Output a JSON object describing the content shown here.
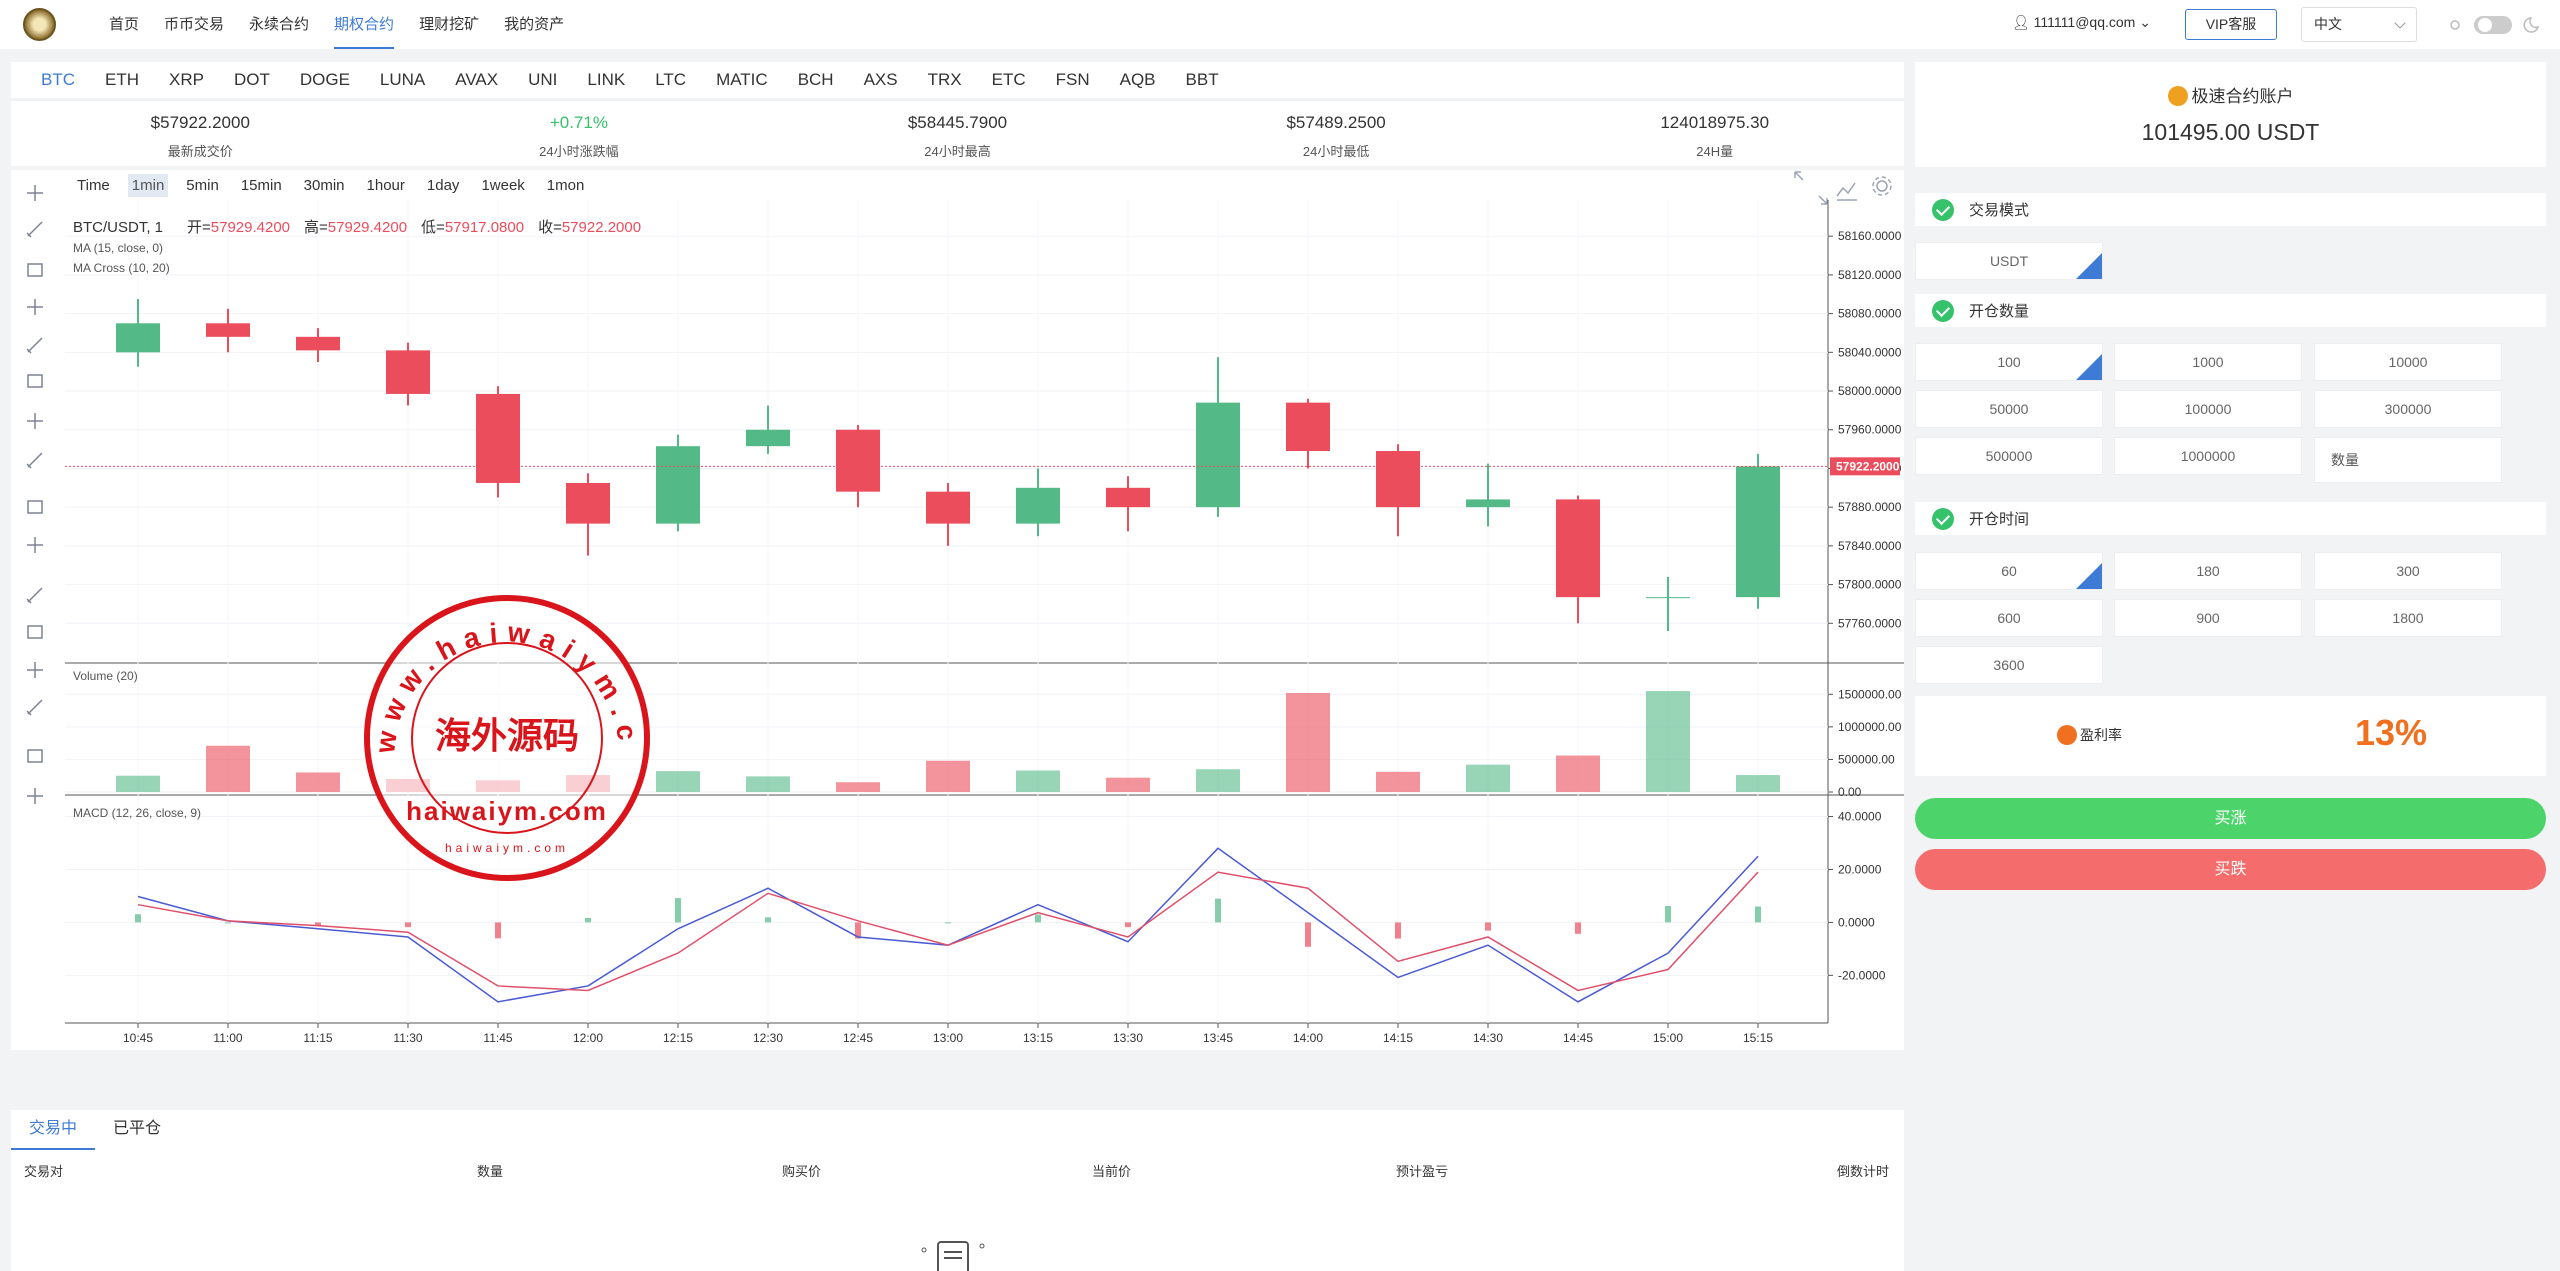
{
  "nav": {
    "items": [
      "首页",
      "币币交易",
      "永续合约",
      "期权合约",
      "理财挖矿",
      "我的资产"
    ],
    "user": "111111@qq.com",
    "service": "VIP客服",
    "language": "中文"
  },
  "coins": [
    "BTC",
    "ETH",
    "XRP",
    "DOT",
    "DOGE",
    "LUNA",
    "AVAX",
    "UNI",
    "LINK",
    "LTC",
    "MATIC",
    "BCH",
    "AXS",
    "TRX",
    "ETC",
    "FSN",
    "AQB",
    "BBT"
  ],
  "stats": [
    {
      "value": "$57922.2000",
      "label": "最新成交价"
    },
    {
      "value": "+0.71%",
      "label": "24小时涨跌幅"
    },
    {
      "value": "$58445.7900",
      "label": "24小时最高"
    },
    {
      "value": "$57489.2500",
      "label": "24小时最低"
    },
    {
      "value": "124018975.30",
      "label": "24H量"
    }
  ],
  "intervals": [
    "Time",
    "1min",
    "5min",
    "15min",
    "30min",
    "1hour",
    "1day",
    "1week",
    "1mon"
  ],
  "legend": {
    "symbol": "BTC/USDT, 1",
    "ohlc": [
      {
        "label": "开=",
        "value": "57929.4200"
      },
      {
        "label": "高=",
        "value": "57929.4200"
      },
      {
        "label": "低=",
        "value": "57917.0800"
      },
      {
        "label": "收=",
        "value": "57922.2000"
      }
    ],
    "ma": "MA (15, close, 0)",
    "ma_cross": "MA Cross (10, 20)",
    "volume": "Volume (20)",
    "macd": "MACD (12, 26, close, 9)"
  },
  "chart_data": [
    {
      "type": "candlestick",
      "categories": [
        "10:45",
        "11:00",
        "11:15",
        "11:30",
        "11:45",
        "12:00",
        "12:15",
        "12:30",
        "12:45",
        "13:00",
        "13:15",
        "13:30",
        "13:45",
        "14:00",
        "14:15",
        "14:30",
        "14:45",
        "15:00",
        "15:15"
      ],
      "open": [
        58040,
        58070,
        58056,
        58042,
        57997,
        57905,
        57863,
        57943,
        57960,
        57896,
        57863,
        57900,
        57880,
        57988,
        57938,
        57880,
        57888,
        57787,
        57787
      ],
      "high": [
        58095,
        58085,
        58065,
        58050,
        58005,
        57915,
        57955,
        57985,
        57965,
        57905,
        57920,
        57912,
        58035,
        57992,
        57945,
        57925,
        57892,
        57808,
        57935
      ],
      "low": [
        58025,
        58040,
        58030,
        57985,
        57890,
        57830,
        57855,
        57935,
        57880,
        57840,
        57850,
        57855,
        57870,
        57920,
        57850,
        57860,
        57760,
        57752,
        57775
      ],
      "close": [
        58070,
        58056,
        58042,
        57997,
        57905,
        57863,
        57943,
        57960,
        57896,
        57863,
        57900,
        57880,
        57988,
        57938,
        57880,
        57888,
        57787,
        57787,
        57922.2
      ],
      "ylim": [
        57720,
        58185
      ],
      "yticks": [
        {
          "value": 57760,
          "label": "57760.0000"
        },
        {
          "value": 57800,
          "label": "57800.0000"
        },
        {
          "value": 57840,
          "label": "57840.0000"
        },
        {
          "value": 57880,
          "label": "57880.0000"
        },
        {
          "value": 57920,
          "label": "57920.0000"
        },
        {
          "value": 57960,
          "label": "57960.0000"
        },
        {
          "value": 58000,
          "label": "58000.0000"
        },
        {
          "value": 58040,
          "label": "58040.0000"
        },
        {
          "value": 58080,
          "label": "58080.0000"
        },
        {
          "value": 58120,
          "label": "58120.0000"
        },
        {
          "value": 58160,
          "label": "58160.0000"
        }
      ],
      "last_price": {
        "value": 57922.2,
        "label": "57922.2000"
      },
      "up_color": "#53b987",
      "down_color": "#eb4d5c",
      "grid": true
    },
    {
      "type": "bar",
      "values": [
        250000,
        710000,
        300000,
        200000,
        180000,
        260000,
        320000,
        240000,
        150000,
        480000,
        330000,
        220000,
        350000,
        1520000,
        310000,
        420000,
        560000,
        1550000,
        260000
      ],
      "ylim": [
        0,
        1950000
      ],
      "yticks": [
        {
          "value": 0,
          "label": "0.00"
        },
        {
          "value": 500000,
          "label": "500000.00"
        },
        {
          "value": 1000000,
          "label": "1000000.00"
        },
        {
          "value": 1500000,
          "label": "1500000.00"
        }
      ],
      "grid": true
    },
    {
      "type": "line",
      "series": [
        {
          "color": "#4a5bd4",
          "values": [
            9.8,
            0.6,
            -2.4,
            -5.5,
            -30,
            -24,
            -2.4,
            12.9,
            -5.5,
            -8.6,
            6.7,
            -7.3,
            28,
            3.7,
            -20.8,
            -8.6,
            -30,
            -11.6,
            25
          ]
        },
        {
          "color": "#e0506a",
          "values": [
            6.7,
            0.6,
            -1.2,
            -3.7,
            -24,
            -25.7,
            -11.6,
            11,
            0.6,
            -8.6,
            3.7,
            -5.5,
            19,
            12.9,
            -14.7,
            -5.5,
            -25.7,
            -17.8,
            19
          ]
        }
      ],
      "histogram": [
        3.1,
        0,
        -1.2,
        -1.8,
        -6,
        1.7,
        9.2,
        1.9,
        -6.1,
        0,
        3,
        -1.8,
        9,
        -9.2,
        -6.1,
        -3.1,
        -4.3,
        6.2,
        6
      ],
      "ylim": [
        -38,
        47
      ],
      "yticks": [
        {
          "value": -20,
          "label": "-20.0000"
        },
        {
          "value": 0,
          "label": "0.0000"
        },
        {
          "value": 20,
          "label": "20.0000"
        },
        {
          "value": 40,
          "label": "40.0000"
        }
      ],
      "grid": true
    }
  ],
  "account": {
    "title": "极速合约账户",
    "balance": "101495.00 USDT",
    "mode_label": "交易模式",
    "mode": "USDT",
    "qty_label": "开仓数量",
    "quantities": [
      "100",
      "1000",
      "10000",
      "50000",
      "100000",
      "300000",
      "500000",
      "1000000"
    ],
    "qty_placeholder": "数量",
    "time_label": "开仓时间",
    "times": [
      "60",
      "180",
      "300",
      "600",
      "900",
      "1800",
      "3600"
    ],
    "profit_label": "盈利率",
    "profit": "13%",
    "buy_up": "买涨",
    "buy_down": "买跌"
  },
  "orders": {
    "tabs": [
      "交易中",
      "已平仓"
    ],
    "headers": [
      "交易对",
      "数量",
      "购买价",
      "当前价",
      "预计盈亏",
      "倒数计时"
    ]
  },
  "watermark": {
    "ring": "www.haiwaiym.com",
    "name": "海外源码",
    "domain": "haiwaiym.com",
    "small": "haiwaiym.com"
  }
}
